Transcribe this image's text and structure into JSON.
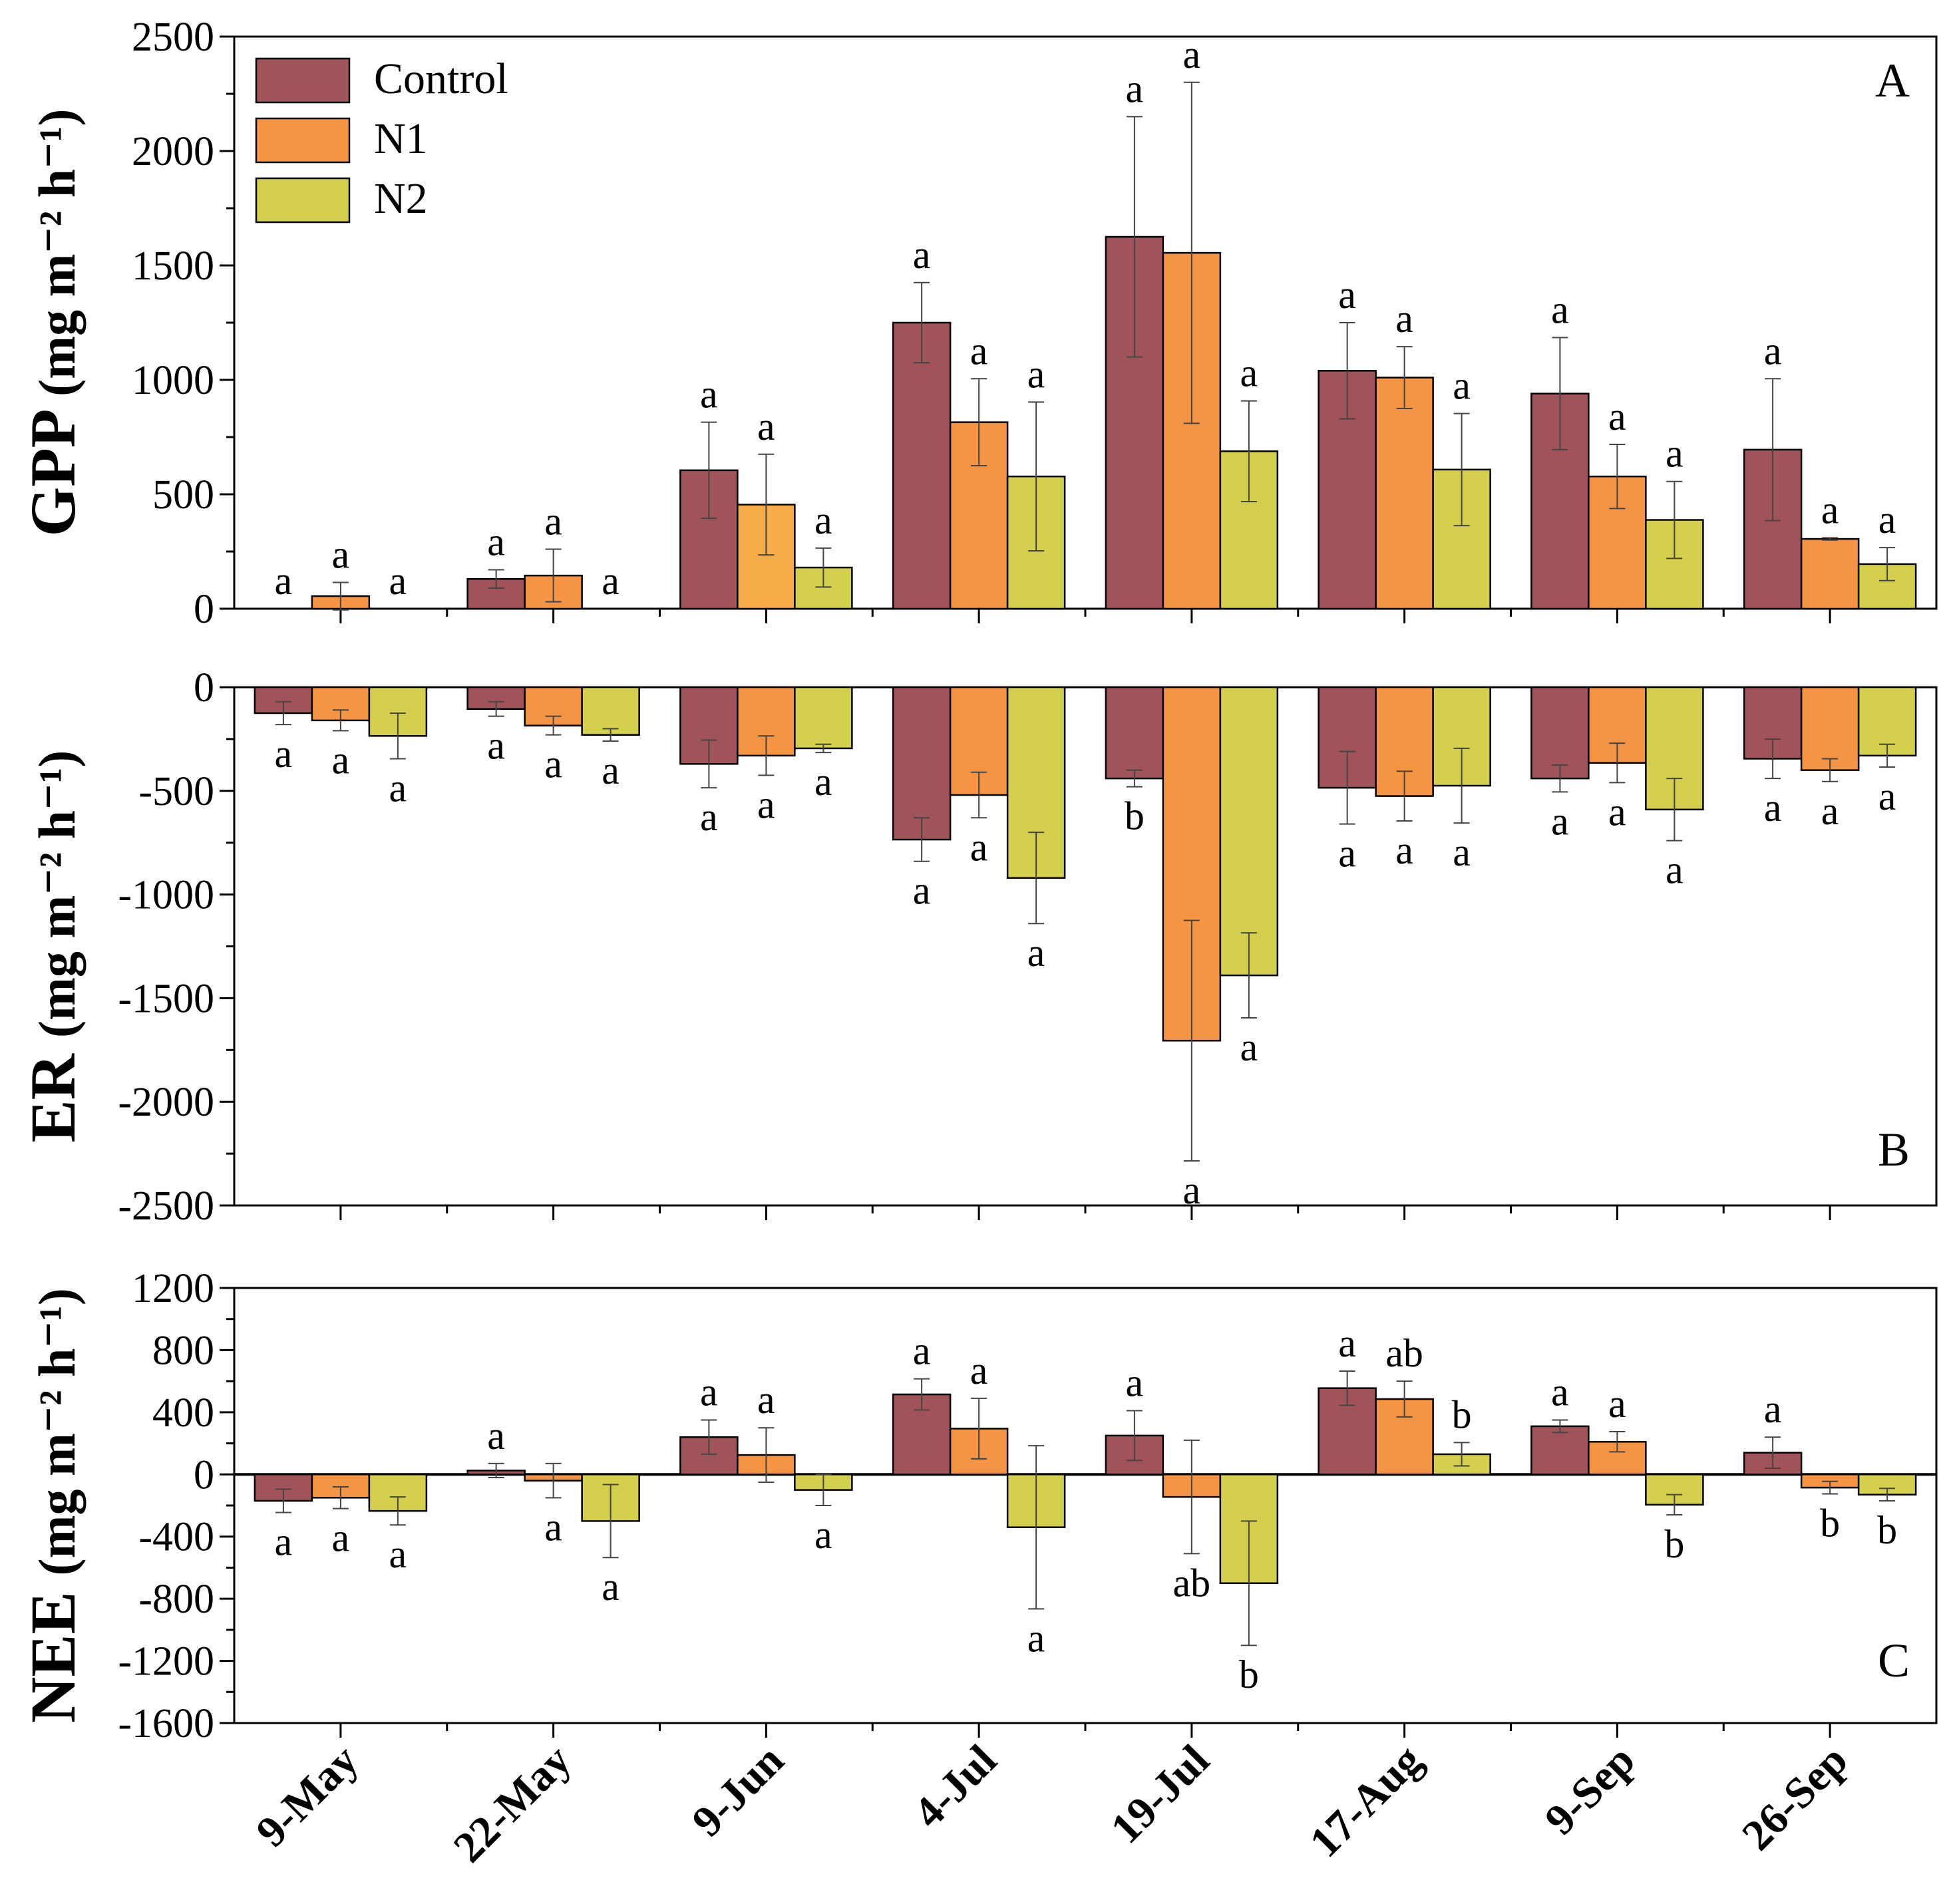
{
  "chart_data": {
    "type": "bar",
    "categories": [
      "9-May",
      "22-May",
      "9-Jun",
      "4-Jul",
      "19-Jul",
      "17-Aug",
      "9-Sep",
      "26-Sep"
    ],
    "legend": {
      "position": "top-left",
      "entries": [
        "Control",
        "N1",
        "N2"
      ]
    },
    "colors": {
      "Control": "#a0545a",
      "N1": "#f59442",
      "N1_alt": "#f9ad4a",
      "N2": "#d4cf4c"
    },
    "panels": [
      {
        "id": "A",
        "panel_label": "A",
        "ylabel": "GPP",
        "ylabel_units": "(mg m⁻² h⁻¹)",
        "ylim": [
          0,
          2500
        ],
        "yticks": [
          0,
          500,
          1000,
          1500,
          2000,
          2500
        ],
        "ytick_labels": [
          "0",
          "500",
          "1000",
          "1500",
          "2000",
          "2500"
        ],
        "series": [
          {
            "name": "Control",
            "values": [
              0,
              130,
              605,
              1250,
              1625,
              1040,
              940,
              695
            ],
            "errors": [
              0,
              40,
              210,
              175,
              525,
              210,
              245,
              310
            ],
            "letters": [
              "a",
              "a",
              "a",
              "a",
              "a",
              "a",
              "a",
              "a"
            ]
          },
          {
            "name": "N1",
            "values": [
              55,
              145,
              455,
              815,
              1555,
              1010,
              578,
              305
            ],
            "errors": [
              60,
              115,
              220,
              190,
              745,
              135,
              140,
              5
            ],
            "letters": [
              "a",
              "a",
              "a",
              "a",
              "a",
              "a",
              "a",
              "a"
            ]
          },
          {
            "name": "N2",
            "values": [
              0,
              0,
              180,
              578,
              688,
              608,
              388,
              195
            ],
            "errors": [
              0,
              0,
              85,
              325,
              220,
              245,
              168,
              72
            ],
            "letters": [
              "a",
              "a",
              "a",
              "a",
              "a",
              "a",
              "a",
              "a"
            ]
          }
        ]
      },
      {
        "id": "B",
        "panel_label": "B",
        "ylabel": "ER",
        "ylabel_units": "(mg m⁻² h⁻¹)",
        "ylim": [
          -2500,
          0
        ],
        "yticks": [
          0,
          -500,
          -1000,
          -1500,
          -2000,
          -2500
        ],
        "ytick_labels": [
          "0",
          "-500",
          "-1000",
          "-1500",
          "-2000",
          "-2500"
        ],
        "series": [
          {
            "name": "Control",
            "values": [
              -125,
              -105,
              -370,
              -735,
              -440,
              -485,
              -440,
              -345
            ],
            "errors": [
              55,
              35,
              115,
              105,
              40,
              175,
              65,
              95
            ],
            "letters": [
              "a",
              "a",
              "a",
              "a",
              "b",
              "a",
              "a",
              "a"
            ]
          },
          {
            "name": "N1",
            "values": [
              -160,
              -185,
              -330,
              -520,
              -1705,
              -525,
              -365,
              -400
            ],
            "errors": [
              50,
              45,
              95,
              110,
              580,
              120,
              95,
              55
            ],
            "letters": [
              "a",
              "a",
              "a",
              "a",
              "a",
              "a",
              "a",
              "a"
            ]
          },
          {
            "name": "N2",
            "values": [
              -235,
              -230,
              -295,
              -920,
              -1390,
              -475,
              -590,
              -330
            ],
            "errors": [
              110,
              30,
              20,
              220,
              205,
              180,
              150,
              55
            ],
            "letters": [
              "a",
              "a",
              "a",
              "a",
              "a",
              "a",
              "a",
              "a"
            ]
          }
        ]
      },
      {
        "id": "C",
        "panel_label": "C",
        "ylabel": "NEE",
        "ylabel_units": "(mg m⁻² h⁻¹)",
        "ylim": [
          -1600,
          1200
        ],
        "yticks": [
          1200,
          800,
          400,
          0,
          -400,
          -800,
          -1200,
          -1600
        ],
        "ytick_labels": [
          "1200",
          "800",
          "400",
          "0",
          "-400",
          "-800",
          "-1200",
          "-1600"
        ],
        "series": [
          {
            "name": "Control",
            "values": [
              -170,
              25,
              240,
              515,
              250,
              555,
              310,
              140
            ],
            "errors": [
              75,
              45,
              110,
              100,
              160,
              110,
              40,
              100
            ],
            "letters": [
              "a",
              "a",
              "a",
              "a",
              "a",
              "a",
              "a",
              "a"
            ]
          },
          {
            "name": "N1",
            "values": [
              -150,
              -40,
              125,
              295,
              -145,
              485,
              210,
              -85
            ],
            "errors": [
              70,
              110,
              175,
              195,
              365,
              115,
              65,
              40
            ],
            "letters": [
              "a",
              "a",
              "a",
              "a",
              "ab",
              "ab",
              "a",
              "b"
            ]
          },
          {
            "name": "N2",
            "values": [
              -235,
              -300,
              -100,
              -340,
              -700,
              130,
              -195,
              -130
            ],
            "errors": [
              90,
              235,
              100,
              525,
              400,
              75,
              65,
              40
            ],
            "letters": [
              "a",
              "a",
              "a",
              "a",
              "b",
              "b",
              "b",
              "b"
            ]
          }
        ]
      }
    ]
  }
}
